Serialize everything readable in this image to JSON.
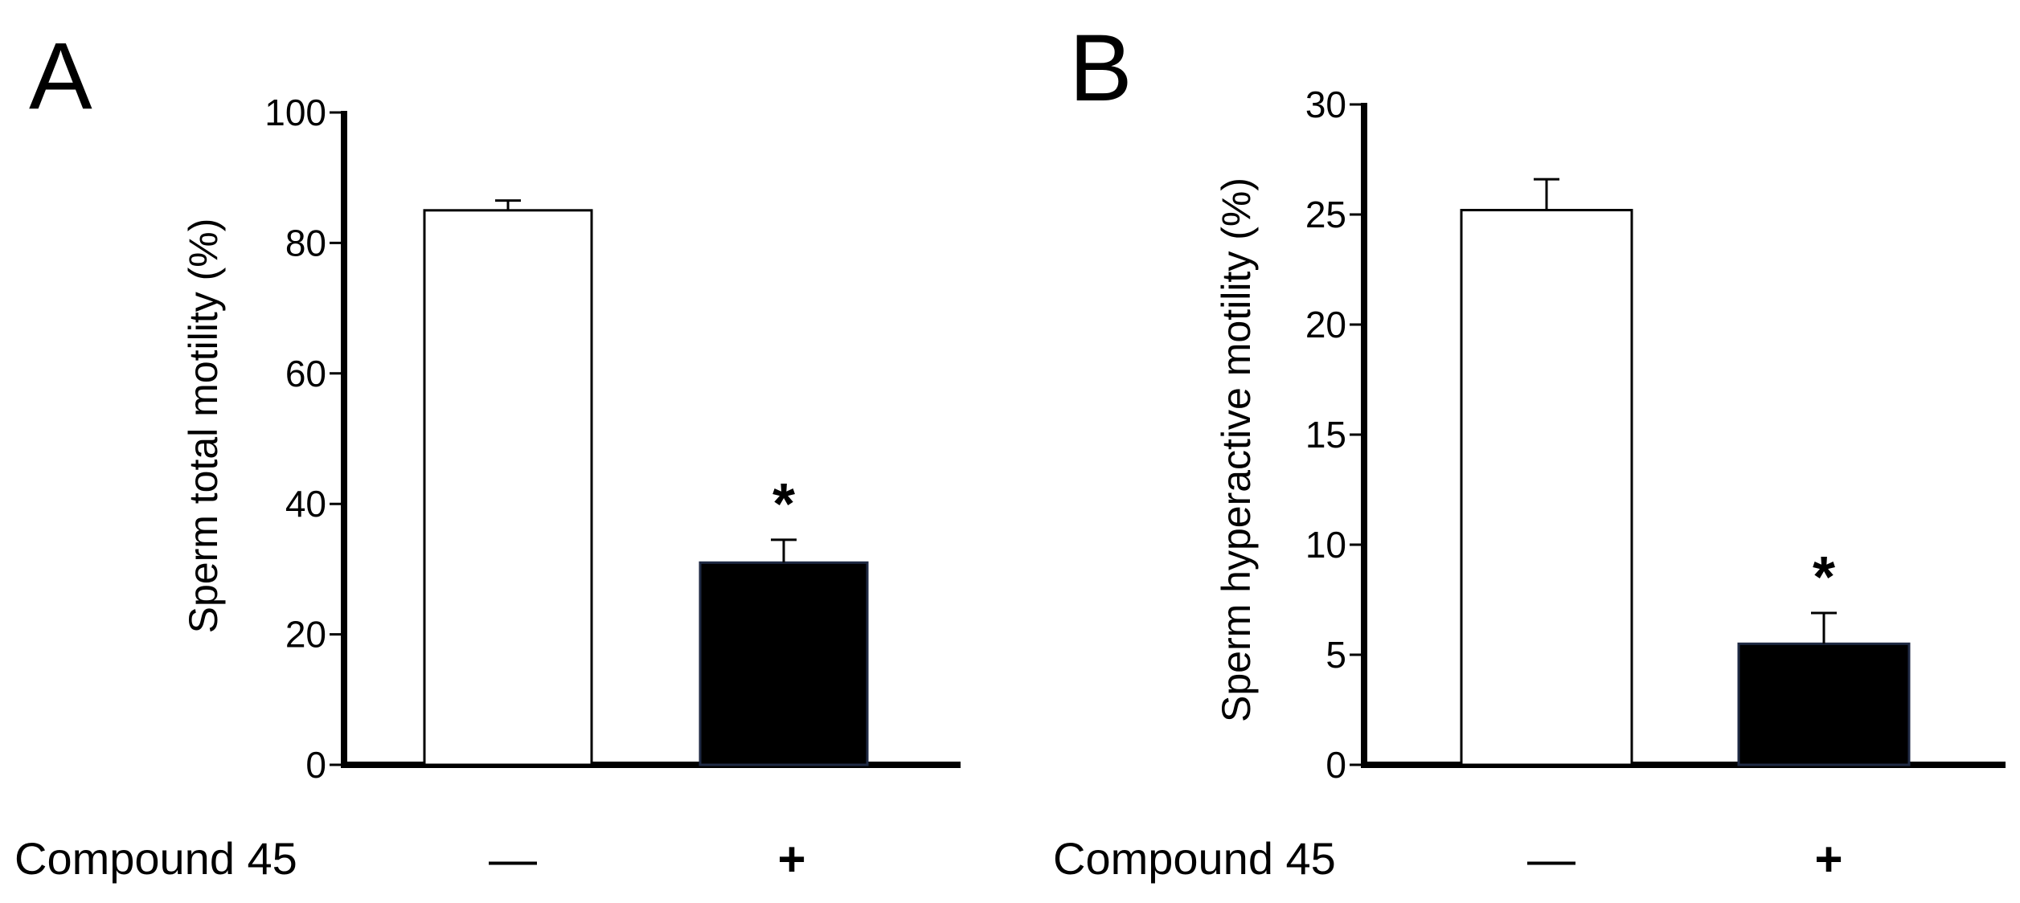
{
  "panels": {
    "A": {
      "letter": "A"
    },
    "B": {
      "letter": "B"
    }
  },
  "row_label": "Compound 45",
  "conditions": [
    "—",
    "+"
  ],
  "colors": {
    "bar_untreated": "#ffffff",
    "bar_treated": "#000000",
    "bar_stroke_treated": "#1f2a44",
    "axis": "#000000"
  },
  "chart_data": [
    {
      "type": "bar",
      "title": "",
      "xlabel": "Compound 45",
      "ylabel": "Sperm total motility (%)",
      "categories": [
        "—",
        "+"
      ],
      "values": [
        85,
        31
      ],
      "errors": [
        1.5,
        3.5
      ],
      "significance": [
        "",
        "*"
      ],
      "ylim": [
        0,
        100
      ],
      "yticks": [
        "0",
        "20",
        "40",
        "60",
        "80",
        "100"
      ],
      "ytick_values": [
        0,
        20,
        40,
        60,
        80,
        100
      ],
      "grid": false,
      "legend": "none"
    },
    {
      "type": "bar",
      "title": "",
      "xlabel": "Compound 45",
      "ylabel": "Sperm hyperactive motility (%)",
      "categories": [
        "—",
        "+"
      ],
      "values": [
        25.2,
        5.5
      ],
      "errors": [
        1.4,
        1.4
      ],
      "significance": [
        "",
        "*"
      ],
      "ylim": [
        0,
        30
      ],
      "yticks": [
        "0",
        "5",
        "10",
        "15",
        "20",
        "25",
        "30"
      ],
      "ytick_values": [
        0,
        5,
        10,
        15,
        20,
        25,
        30
      ],
      "grid": false,
      "legend": "none"
    }
  ]
}
